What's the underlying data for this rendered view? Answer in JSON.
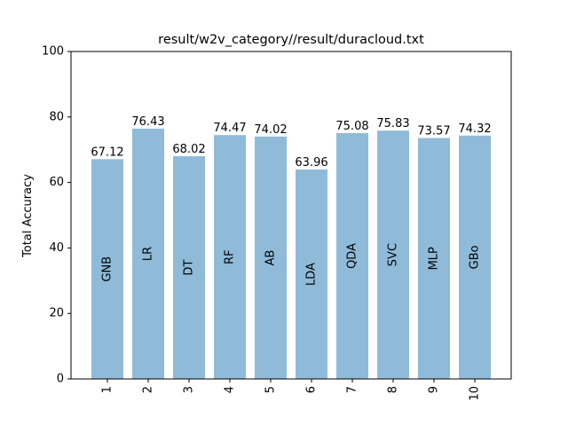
{
  "chart_data": {
    "type": "bar",
    "title": "result/w2v_category//result/duracloud.txt",
    "xlabel": "",
    "ylabel": "Total Accuracy",
    "ylim": [
      0,
      100
    ],
    "yticks": [
      0,
      20,
      40,
      60,
      80,
      100
    ],
    "categories": [
      "1",
      "2",
      "3",
      "4",
      "5",
      "6",
      "7",
      "8",
      "9",
      "10"
    ],
    "values": [
      67.12,
      76.43,
      68.02,
      74.47,
      74.02,
      63.96,
      75.08,
      75.83,
      73.57,
      74.32
    ],
    "value_labels": [
      "67.12",
      "76.43",
      "68.02",
      "74.47",
      "74.02",
      "63.96",
      "75.08",
      "75.83",
      "73.57",
      "74.32"
    ],
    "bar_labels": [
      "GNB",
      "LR",
      "DT",
      "RF",
      "AB",
      "LDA",
      "QDA",
      "SVC",
      "MLP",
      "GBo"
    ],
    "bar_color": "#8fbbd9",
    "grid": false,
    "legend": "none"
  }
}
